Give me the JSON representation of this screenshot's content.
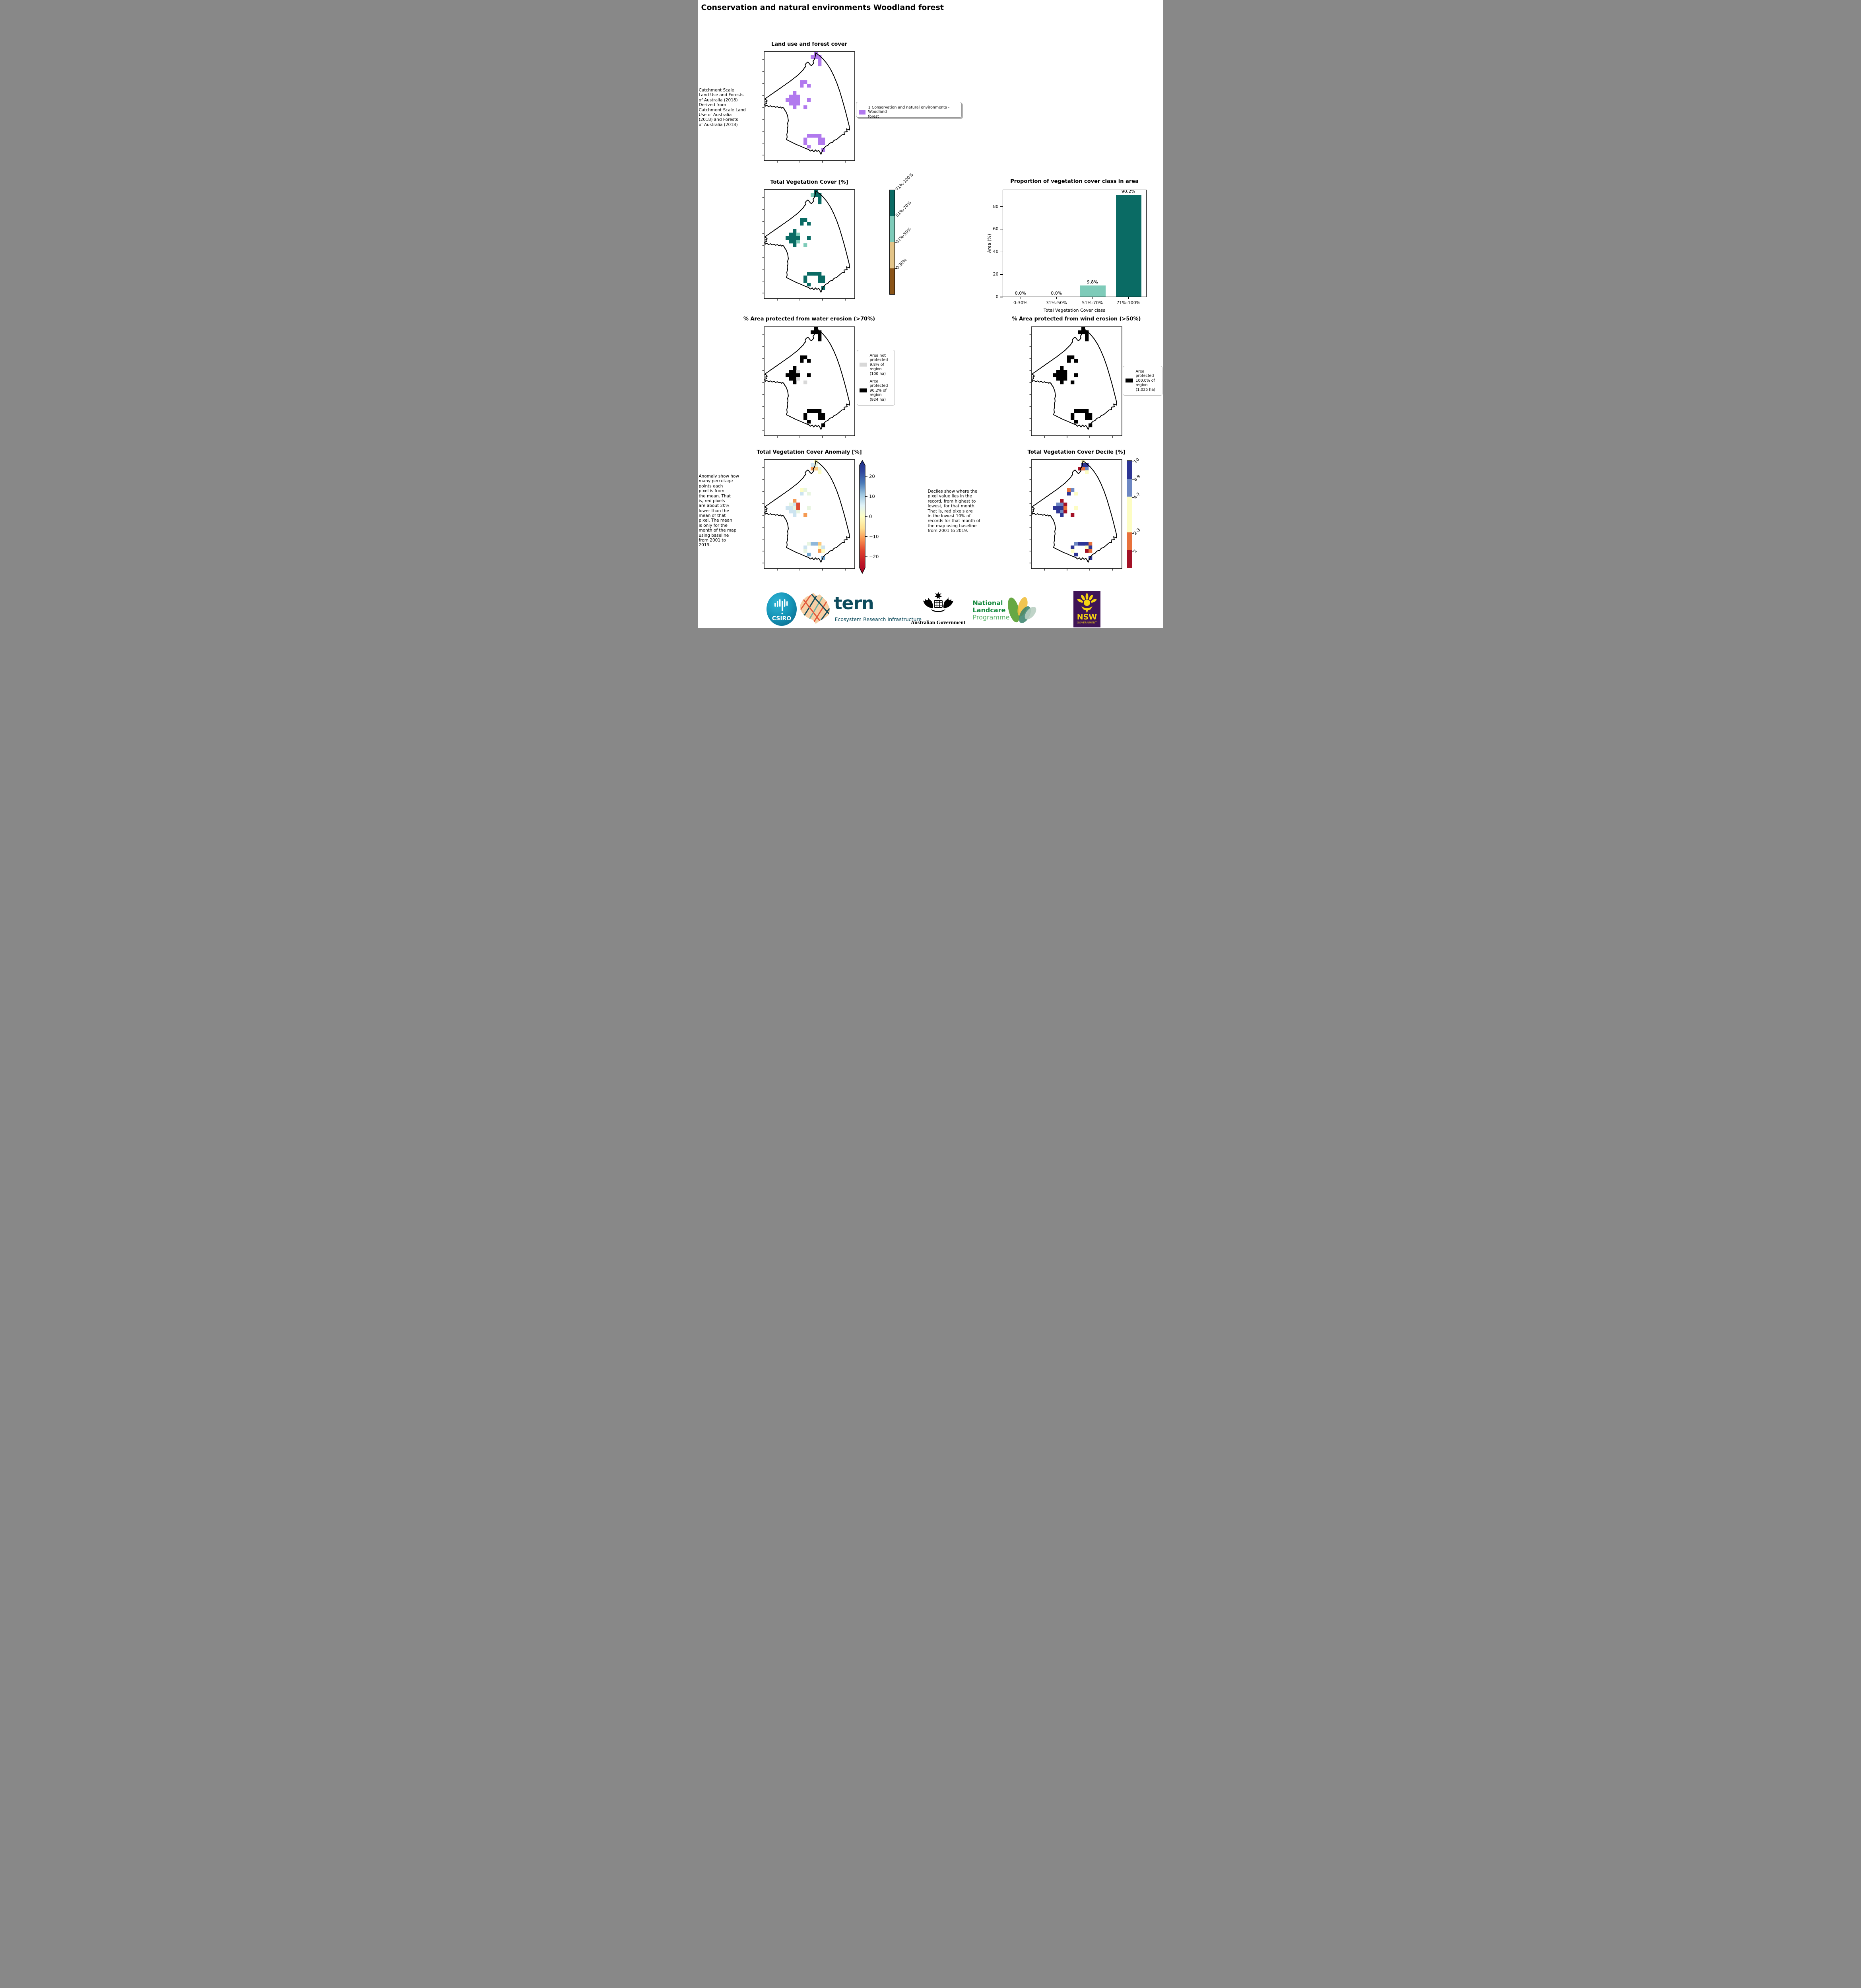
{
  "page_title": "Conservation and natural environments Woodland forest",
  "palette": {
    "cellColors": {
      "pu": "#b179ee",
      "d": "#0a6b64",
      "l": "#7ecbb9",
      "blk": "#000000",
      "g": "#d8d8d8",
      "rd": "#dd4a30",
      "or": "#f59a53",
      "yo": "#fdc97d",
      "py": "#fdfdc3",
      "pg": "#e8f5e0",
      "lb": "#cde4f0",
      "sb": "#8fb8da",
      "mb": "#74a9d1",
      "na": "#2d3594",
      "sb2": "#6d87c3",
      "or2": "#e8713c",
      "cr": "#a31126"
    },
    "anomaly_gradient": [
      "#1f2f87",
      "#30479e",
      "#4a7ab7",
      "#9dc6e0",
      "#e1f3f8",
      "#fefec2",
      "#fee090",
      "#f89150",
      "#e04430",
      "#c01a27",
      "#a50026"
    ]
  },
  "panels": {
    "landuse": {
      "title": "Land use and forest cover",
      "note": " Catchment Scale\nLand Use and Forests\nof Australia (2018)\nDerived from\nCatchment Scale Land\nUse of Australia\n(2018) and Forests\nof Australia (2018)",
      "legend_label": "1 Conservation and natural environments - Woodland\nforest",
      "legend_color": "#b179ee"
    },
    "tvc": {
      "title": "Total Vegetation Cover [%]",
      "colorbar_labels": [
        "71%-100%",
        "51%-70%",
        "31%-50%",
        "0-30%"
      ],
      "colorbar_colors": [
        "#0a6b64",
        "#7ecbb9",
        "#e3c488",
        "#8a5417"
      ]
    },
    "water": {
      "title": "% Area protected from water erosion (>70%)",
      "legend": [
        {
          "color": "#d8d8d8",
          "label": "Area not\nprotected\n9.8% of\nregion\n(100 ha)"
        },
        {
          "color": "#000000",
          "label": "Area\nprotected\n90.2% of\nregion\n(924 ha)"
        }
      ]
    },
    "wind": {
      "title": "% Area protected from wind erosion (>50%)",
      "legend": [
        {
          "color": "#000000",
          "label": "Area\nprotected\n100.0% of\nregion\n(1,025 ha)"
        }
      ]
    },
    "anomaly": {
      "title": "Total Vegetation Cover Anomaly [%]",
      "note": "Anomaly show how\nmany percetage\npoints each\npixel is from\nthe mean. That\nis, red pixels\nare about 20%\nlower than the\nmean of that\npixel. The mean\nis only for the\nmonth of the map\nusing baseline\nfrom 2001 to\n2019.",
      "colorbar_ticks": [
        "20",
        "10",
        "0",
        "−10",
        "−20"
      ],
      "colorbar_tick_values": [
        20,
        10,
        0,
        -10,
        -20
      ]
    },
    "decile": {
      "title": "Total Vegetation Cover Decile [%]",
      "note": "Deciles show where the\npixel value lies in the\nrecord, from highest to\nlowest, for that month.\nThat is, red pixels are\nin the lowest 10% of\nrecords for that month of\nthe map using baseline\nfrom 2001 to 2019.",
      "colorbar_labels": [
        "10",
        "8-9",
        "4-7",
        "2-3",
        "1"
      ],
      "colorbar_colors": [
        "#2d3594",
        "#6d87c3",
        "#fdfdc3",
        "#e8713c",
        "#a31126"
      ],
      "colorbar_heights": [
        45,
        45,
        90,
        45,
        45
      ]
    }
  },
  "chart_data": [
    {
      "id": "proportion",
      "type": "bar",
      "title": "Proportion of vegetation cover class in area",
      "categories": [
        "0-30%",
        "31%-50%",
        "51%-70%",
        "71%-100%"
      ],
      "values": [
        0.0,
        0.0,
        9.8,
        90.2
      ],
      "value_labels": [
        "0.0%",
        "0.0%",
        "9.8%",
        "90.2%"
      ],
      "bar_colors": [
        "#8a5417",
        "#e3c488",
        "#7ecbb9",
        "#0a6b64"
      ],
      "xlabel": "Total Vegetation Cover class",
      "ylabel": "Area (%)",
      "yticks": [
        0,
        20,
        40,
        60,
        80
      ],
      "ylim": [
        0,
        95
      ],
      "grid": false,
      "legend_position": "none"
    },
    {
      "id": "landuse",
      "type": "map",
      "cells": [
        [
          14,
          0,
          "pu"
        ],
        [
          13,
          1,
          "pu"
        ],
        [
          14,
          1,
          "pu"
        ],
        [
          15,
          1,
          "pu"
        ],
        [
          15,
          2,
          "pu"
        ],
        [
          15,
          3,
          "pu"
        ],
        [
          10,
          8,
          "pu"
        ],
        [
          11,
          8,
          "pu"
        ],
        [
          10,
          9,
          "pu"
        ],
        [
          12,
          9,
          "pu"
        ],
        [
          8,
          11,
          "pu"
        ],
        [
          7,
          12,
          "pu"
        ],
        [
          8,
          12,
          "pu"
        ],
        [
          9,
          12,
          "pu"
        ],
        [
          6,
          13,
          "pu"
        ],
        [
          7,
          13,
          "pu"
        ],
        [
          8,
          13,
          "pu"
        ],
        [
          9,
          13,
          "pu"
        ],
        [
          7,
          14,
          "pu"
        ],
        [
          8,
          14,
          "pu"
        ],
        [
          9,
          14,
          "pu"
        ],
        [
          8,
          15,
          "pu"
        ],
        [
          12,
          13,
          "pu"
        ],
        [
          11,
          15,
          "pu"
        ],
        [
          12,
          23,
          "pu"
        ],
        [
          13,
          23,
          "pu"
        ],
        [
          14,
          23,
          "pu"
        ],
        [
          15,
          23,
          "pu"
        ],
        [
          11,
          24,
          "pu"
        ],
        [
          15,
          24,
          "pu"
        ],
        [
          16,
          24,
          "pu"
        ],
        [
          11,
          25,
          "pu"
        ],
        [
          15,
          25,
          "pu"
        ],
        [
          16,
          25,
          "pu"
        ],
        [
          12,
          26,
          "pu"
        ],
        [
          16,
          27,
          "pu"
        ]
      ]
    },
    {
      "id": "tvc",
      "type": "map",
      "cells": [
        [
          14,
          0,
          "d"
        ],
        [
          13,
          1,
          "l"
        ],
        [
          14,
          1,
          "d"
        ],
        [
          15,
          1,
          "d"
        ],
        [
          15,
          2,
          "d"
        ],
        [
          15,
          3,
          "d"
        ],
        [
          10,
          8,
          "d"
        ],
        [
          11,
          8,
          "d"
        ],
        [
          10,
          9,
          "d"
        ],
        [
          12,
          9,
          "d"
        ],
        [
          8,
          11,
          "d"
        ],
        [
          7,
          12,
          "d"
        ],
        [
          8,
          12,
          "d"
        ],
        [
          9,
          12,
          "l"
        ],
        [
          6,
          13,
          "d"
        ],
        [
          7,
          13,
          "d"
        ],
        [
          8,
          13,
          "d"
        ],
        [
          9,
          13,
          "d"
        ],
        [
          7,
          14,
          "d"
        ],
        [
          8,
          14,
          "d"
        ],
        [
          9,
          14,
          "l"
        ],
        [
          8,
          15,
          "d"
        ],
        [
          12,
          13,
          "d"
        ],
        [
          11,
          15,
          "l"
        ],
        [
          12,
          23,
          "d"
        ],
        [
          13,
          23,
          "d"
        ],
        [
          14,
          23,
          "d"
        ],
        [
          15,
          23,
          "d"
        ],
        [
          11,
          24,
          "d"
        ],
        [
          15,
          24,
          "d"
        ],
        [
          16,
          24,
          "d"
        ],
        [
          11,
          25,
          "d"
        ],
        [
          15,
          25,
          "d"
        ],
        [
          16,
          25,
          "d"
        ],
        [
          12,
          26,
          "d"
        ],
        [
          16,
          27,
          "d"
        ]
      ]
    },
    {
      "id": "water",
      "type": "map",
      "cells": [
        [
          14,
          0,
          "blk"
        ],
        [
          13,
          1,
          "blk"
        ],
        [
          14,
          1,
          "blk"
        ],
        [
          15,
          1,
          "blk"
        ],
        [
          15,
          2,
          "blk"
        ],
        [
          15,
          3,
          "blk"
        ],
        [
          10,
          8,
          "blk"
        ],
        [
          11,
          8,
          "blk"
        ],
        [
          10,
          9,
          "blk"
        ],
        [
          12,
          9,
          "blk"
        ],
        [
          8,
          11,
          "blk"
        ],
        [
          7,
          12,
          "blk"
        ],
        [
          8,
          12,
          "blk"
        ],
        [
          9,
          12,
          "g"
        ],
        [
          6,
          13,
          "blk"
        ],
        [
          7,
          13,
          "blk"
        ],
        [
          8,
          13,
          "blk"
        ],
        [
          9,
          13,
          "blk"
        ],
        [
          7,
          14,
          "blk"
        ],
        [
          8,
          14,
          "blk"
        ],
        [
          9,
          14,
          "g"
        ],
        [
          8,
          15,
          "blk"
        ],
        [
          12,
          13,
          "blk"
        ],
        [
          11,
          15,
          "g"
        ],
        [
          12,
          23,
          "blk"
        ],
        [
          13,
          23,
          "blk"
        ],
        [
          14,
          23,
          "blk"
        ],
        [
          15,
          23,
          "blk"
        ],
        [
          11,
          24,
          "blk"
        ],
        [
          15,
          24,
          "blk"
        ],
        [
          16,
          24,
          "blk"
        ],
        [
          11,
          25,
          "blk"
        ],
        [
          15,
          25,
          "blk"
        ],
        [
          16,
          25,
          "blk"
        ],
        [
          12,
          26,
          "blk"
        ],
        [
          16,
          27,
          "blk"
        ]
      ]
    },
    {
      "id": "wind",
      "type": "map",
      "cells": [
        [
          14,
          0,
          "blk"
        ],
        [
          13,
          1,
          "blk"
        ],
        [
          14,
          1,
          "blk"
        ],
        [
          15,
          1,
          "blk"
        ],
        [
          15,
          2,
          "blk"
        ],
        [
          15,
          3,
          "blk"
        ],
        [
          10,
          8,
          "blk"
        ],
        [
          11,
          8,
          "blk"
        ],
        [
          10,
          9,
          "blk"
        ],
        [
          12,
          9,
          "blk"
        ],
        [
          8,
          11,
          "blk"
        ],
        [
          7,
          12,
          "blk"
        ],
        [
          8,
          12,
          "blk"
        ],
        [
          9,
          12,
          "blk"
        ],
        [
          6,
          13,
          "blk"
        ],
        [
          7,
          13,
          "blk"
        ],
        [
          8,
          13,
          "blk"
        ],
        [
          9,
          13,
          "blk"
        ],
        [
          7,
          14,
          "blk"
        ],
        [
          8,
          14,
          "blk"
        ],
        [
          9,
          14,
          "blk"
        ],
        [
          8,
          15,
          "blk"
        ],
        [
          12,
          13,
          "blk"
        ],
        [
          11,
          15,
          "blk"
        ],
        [
          12,
          23,
          "blk"
        ],
        [
          13,
          23,
          "blk"
        ],
        [
          14,
          23,
          "blk"
        ],
        [
          15,
          23,
          "blk"
        ],
        [
          11,
          24,
          "blk"
        ],
        [
          15,
          24,
          "blk"
        ],
        [
          16,
          24,
          "blk"
        ],
        [
          11,
          25,
          "blk"
        ],
        [
          15,
          25,
          "blk"
        ],
        [
          16,
          25,
          "blk"
        ],
        [
          12,
          26,
          "blk"
        ],
        [
          16,
          27,
          "blk"
        ]
      ]
    },
    {
      "id": "anomaly",
      "type": "map",
      "cells": [
        [
          14,
          0,
          "py"
        ],
        [
          13,
          1,
          "lb"
        ],
        [
          14,
          1,
          "pg"
        ],
        [
          13,
          2,
          "or"
        ],
        [
          14,
          2,
          "yo"
        ],
        [
          15,
          2,
          "pg"
        ],
        [
          15,
          3,
          "py"
        ],
        [
          10,
          8,
          "py"
        ],
        [
          11,
          8,
          "pg"
        ],
        [
          10,
          9,
          "lb"
        ],
        [
          12,
          9,
          "pg"
        ],
        [
          8,
          11,
          "or"
        ],
        [
          7,
          12,
          "pg"
        ],
        [
          8,
          12,
          "lb"
        ],
        [
          9,
          12,
          "rd"
        ],
        [
          6,
          13,
          "lb"
        ],
        [
          7,
          13,
          "lb"
        ],
        [
          8,
          13,
          "pg"
        ],
        [
          9,
          13,
          "rd"
        ],
        [
          7,
          14,
          "lb"
        ],
        [
          8,
          14,
          "lb"
        ],
        [
          9,
          14,
          "pg"
        ],
        [
          8,
          15,
          "lb"
        ],
        [
          12,
          13,
          "pg"
        ],
        [
          11,
          15,
          "or"
        ],
        [
          12,
          23,
          "pg"
        ],
        [
          13,
          23,
          "sb"
        ],
        [
          14,
          23,
          "sb"
        ],
        [
          15,
          23,
          "yo"
        ],
        [
          11,
          24,
          "lb"
        ],
        [
          15,
          24,
          "py"
        ],
        [
          16,
          24,
          "lb"
        ],
        [
          11,
          25,
          "pg"
        ],
        [
          15,
          25,
          "or"
        ],
        [
          16,
          25,
          "py"
        ],
        [
          12,
          26,
          "mb"
        ],
        [
          16,
          27,
          "mb"
        ]
      ]
    },
    {
      "id": "decile",
      "type": "map",
      "cells": [
        [
          14,
          0,
          "py"
        ],
        [
          14,
          1,
          "na"
        ],
        [
          15,
          1,
          "na"
        ],
        [
          13,
          2,
          "cr"
        ],
        [
          14,
          2,
          "or2"
        ],
        [
          15,
          2,
          "sb2"
        ],
        [
          15,
          3,
          "py"
        ],
        [
          10,
          8,
          "or2"
        ],
        [
          11,
          8,
          "sb2"
        ],
        [
          10,
          9,
          "na"
        ],
        [
          12,
          9,
          "py"
        ],
        [
          8,
          11,
          "cr"
        ],
        [
          7,
          12,
          "sb2"
        ],
        [
          8,
          12,
          "sb2"
        ],
        [
          9,
          12,
          "cr"
        ],
        [
          6,
          13,
          "na"
        ],
        [
          7,
          13,
          "na"
        ],
        [
          8,
          13,
          "na"
        ],
        [
          9,
          13,
          "or2"
        ],
        [
          7,
          14,
          "na"
        ],
        [
          8,
          14,
          "sb2"
        ],
        [
          9,
          14,
          "cr"
        ],
        [
          8,
          15,
          "na"
        ],
        [
          12,
          13,
          "py"
        ],
        [
          11,
          15,
          "cr"
        ],
        [
          12,
          23,
          "sb2"
        ],
        [
          13,
          23,
          "na"
        ],
        [
          14,
          23,
          "na"
        ],
        [
          15,
          23,
          "na"
        ],
        [
          16,
          23,
          "or2"
        ],
        [
          11,
          24,
          "na"
        ],
        [
          15,
          24,
          "py"
        ],
        [
          16,
          24,
          "na"
        ],
        [
          11,
          25,
          "py"
        ],
        [
          15,
          25,
          "cr"
        ],
        [
          16,
          25,
          "or2"
        ],
        [
          12,
          26,
          "na"
        ],
        [
          16,
          27,
          "na"
        ]
      ]
    }
  ],
  "footer": {
    "csiro": "CSIRO",
    "tern": "tern",
    "tern_sub": "Ecosystem Research Infrastructure",
    "ausgov": "Australian Government",
    "landcare_1": "National",
    "landcare_2": "Landcare",
    "landcare_3": "Programme",
    "nsw": "NSW",
    "nsw_sub": "GOVERNMENT"
  }
}
